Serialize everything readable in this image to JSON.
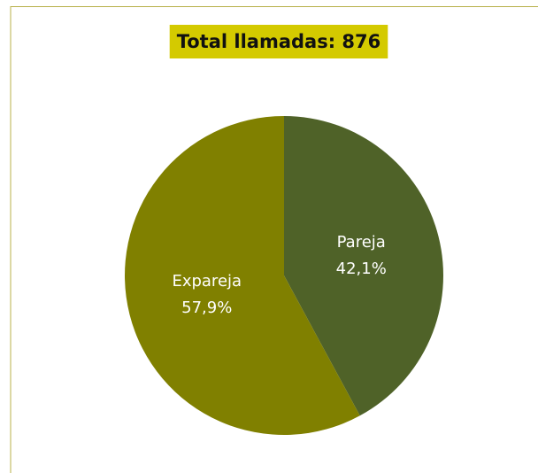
{
  "chart_data": {
    "type": "pie",
    "title": "Total llamadas: 876",
    "title_background": "#d4ca00",
    "categories": [
      "Pareja",
      "Expareja"
    ],
    "values": [
      42.1,
      57.9
    ],
    "value_labels": [
      "42,1%",
      "57,9%"
    ],
    "colors": [
      "#4f6228",
      "#808000"
    ]
  }
}
